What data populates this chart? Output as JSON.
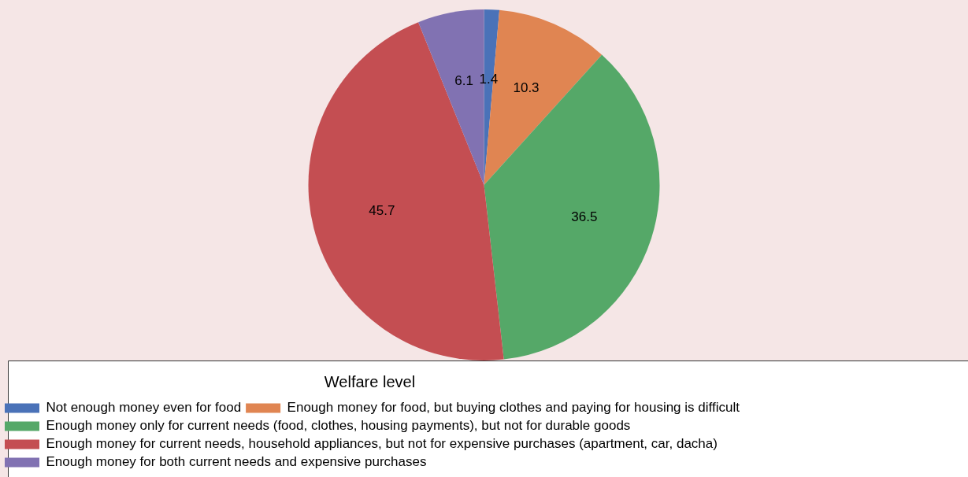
{
  "chart_data": {
    "type": "pie",
    "legend_title": "Welfare level",
    "legend": "bottom",
    "data_labels": true,
    "categories": [
      "Not enough money even for food",
      "Enough money for food, but buying clothes and paying for housing is difficult",
      "Enough money only for current needs (food, clothes, housing payments), but not for durable goods",
      "Enough money for current needs, household appliances, but not for expensive purchases (apartment, car, dacha)",
      "Enough money for both current needs and expensive purchases"
    ],
    "values": [
      1.4,
      10.3,
      36.5,
      45.7,
      6.1
    ],
    "colors": [
      "#4a72b8",
      "#e08552",
      "#55a868",
      "#c44e52",
      "#8172b2"
    ]
  }
}
